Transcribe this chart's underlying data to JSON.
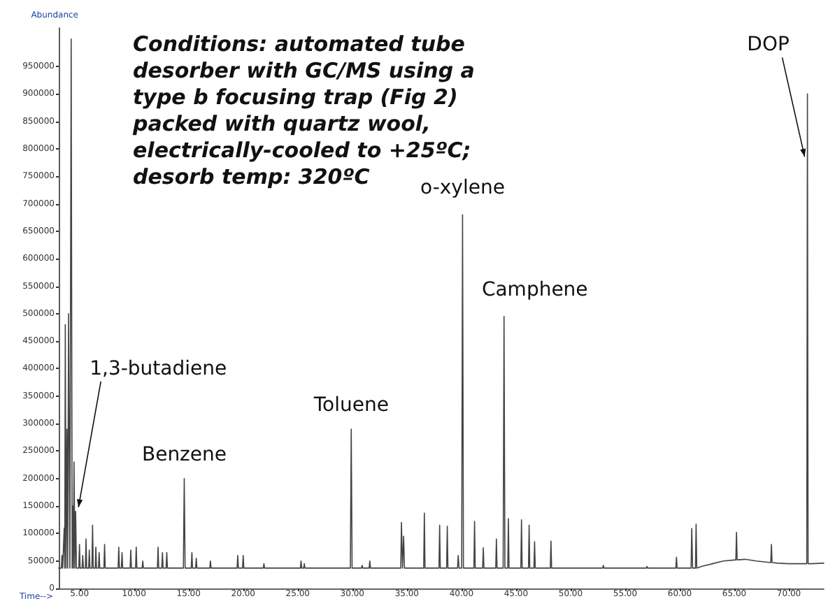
{
  "chart_data": {
    "type": "line",
    "xlabel": "Time-->",
    "ylabel": "Abundance",
    "annotations": [
      "Conditions: automated tube desorber with GC/MS using a type b focusing trap (Fig 2) packed with quartz wool, electrically-cooled to +25ºC; desorb temp: 320ºC",
      {
        "text": "1,3-butadiene",
        "x": 4.65,
        "y": 140000
      },
      {
        "text": "Benzene",
        "x": 14.6,
        "y": 200000
      },
      {
        "text": "Toluene",
        "x": 29.9,
        "y": 290000
      },
      {
        "text": "o-xylene",
        "x": 40.1,
        "y": 680000
      },
      {
        "text": "Camphene",
        "x": 43.9,
        "y": 495000
      },
      {
        "text": "DOP",
        "x": 71.7,
        "y": 900000
      }
    ],
    "series": [
      {
        "color": "#444444",
        "x": [
          3.1,
          3.34,
          3.4,
          3.46,
          3.54,
          3.6,
          3.65,
          3.7,
          3.77,
          3.85,
          3.92,
          4.0,
          4.12,
          4.24,
          4.33,
          4.4,
          4.45,
          4.5,
          4.58,
          4.65,
          4.72,
          4.94,
          5.0,
          5.06,
          5.24,
          5.3,
          5.36,
          5.54,
          5.6,
          5.66,
          5.84,
          5.9,
          5.96,
          6.14,
          6.2,
          6.26,
          6.44,
          6.5,
          6.56,
          6.74,
          6.8,
          6.86,
          7.24,
          7.3,
          7.36,
          8.54,
          8.6,
          8.66,
          8.84,
          8.9,
          8.96,
          9.64,
          9.7,
          9.76,
          10.14,
          10.2,
          10.26,
          10.74,
          10.8,
          10.86,
          12.14,
          12.2,
          12.26,
          12.54,
          12.6,
          12.66,
          12.94,
          13.0,
          13.06,
          14.52,
          14.6,
          14.68,
          15.24,
          15.3,
          15.36,
          15.64,
          15.7,
          15.76,
          16.94,
          17.0,
          17.06,
          19.44,
          19.5,
          19.56,
          19.94,
          20.0,
          20.06,
          21.84,
          21.9,
          21.96,
          25.24,
          25.3,
          25.36,
          25.54,
          25.6,
          25.66,
          29.82,
          29.9,
          29.98,
          30.84,
          30.9,
          30.96,
          31.54,
          31.6,
          31.66,
          34.44,
          34.5,
          34.6,
          34.7,
          34.78,
          36.54,
          36.6,
          36.66,
          37.94,
          38.0,
          38.06,
          38.64,
          38.7,
          38.76,
          39.64,
          39.7,
          39.78,
          40.02,
          40.1,
          40.18,
          41.14,
          41.2,
          41.26,
          41.94,
          42.0,
          42.06,
          43.14,
          43.2,
          43.26,
          43.82,
          43.9,
          43.98,
          44.24,
          44.3,
          44.36,
          45.44,
          45.5,
          45.56,
          46.14,
          46.2,
          46.26,
          46.64,
          46.7,
          46.76,
          48.14,
          48.2,
          48.26,
          52.94,
          53.0,
          53.06,
          56.94,
          57.0,
          57.06,
          59.64,
          59.7,
          59.76,
          61.04,
          61.1,
          61.18,
          61.44,
          61.5,
          61.56,
          62,
          63,
          64,
          65.14,
          65.2,
          65.26,
          66,
          67,
          68.34,
          68.4,
          68.46,
          69,
          70,
          71,
          71.64,
          71.7,
          71.76,
          72,
          73.2
        ],
        "values": [
          37000,
          37000,
          60000,
          37000,
          37000,
          110000,
          37000,
          480000,
          37000,
          290000,
          37000,
          500000,
          37000,
          1000000,
          37000,
          150000,
          37000,
          230000,
          37000,
          140000,
          37000,
          37000,
          80000,
          37000,
          37000,
          60000,
          37000,
          37000,
          90000,
          37000,
          37000,
          70000,
          37000,
          37000,
          115000,
          37000,
          37000,
          75000,
          37000,
          37000,
          65000,
          37000,
          37000,
          80000,
          37000,
          37000,
          75000,
          37000,
          37000,
          65000,
          37000,
          37000,
          70000,
          37000,
          37000,
          75000,
          37000,
          37000,
          50000,
          37000,
          37000,
          75000,
          37000,
          37000,
          65000,
          37000,
          37000,
          65000,
          37000,
          37000,
          200000,
          37000,
          37000,
          65000,
          37000,
          37000,
          55000,
          37000,
          37000,
          50000,
          37000,
          37000,
          60000,
          37000,
          37000,
          60000,
          37000,
          37000,
          45000,
          37000,
          37000,
          50000,
          37000,
          37000,
          45000,
          37000,
          37000,
          290000,
          37000,
          37000,
          42000,
          37000,
          37000,
          50000,
          37000,
          37000,
          120000,
          37000,
          95000,
          37000,
          37000,
          137000,
          37000,
          37000,
          115000,
          37000,
          37000,
          113000,
          37000,
          37000,
          60000,
          37000,
          37000,
          680000,
          37000,
          37000,
          122000,
          37000,
          37000,
          74000,
          37000,
          37000,
          90000,
          37000,
          37000,
          495000,
          37000,
          37000,
          127000,
          37000,
          37000,
          125000,
          37000,
          37000,
          115000,
          37000,
          37000,
          85000,
          37000,
          37000,
          86000,
          37000,
          37000,
          42000,
          37000,
          37000,
          40000,
          37000,
          37000,
          57000,
          37000,
          37000,
          109000,
          37000,
          37000,
          117000,
          37000,
          40000,
          45000,
          50000,
          52000,
          102000,
          52000,
          53000,
          50000,
          47000,
          80000,
          47000,
          46000,
          45000,
          45000,
          45000,
          900000,
          45000,
          45000,
          46000
        ]
      }
    ],
    "xlim": [
      3.1,
      73.2
    ],
    "xticks": [
      {
        "value": 5,
        "label": "5.00"
      },
      {
        "value": 10,
        "label": "10.00"
      },
      {
        "value": 15,
        "label": "15.00"
      },
      {
        "value": 20,
        "label": "20.00"
      },
      {
        "value": 25,
        "label": "25.00"
      },
      {
        "value": 30,
        "label": "30.00"
      },
      {
        "value": 35,
        "label": "35.00"
      },
      {
        "value": 40,
        "label": "40.00"
      },
      {
        "value": 45,
        "label": "45.00"
      },
      {
        "value": 50,
        "label": "50.00"
      },
      {
        "value": 55,
        "label": "55.00"
      },
      {
        "value": 60,
        "label": "60.00"
      },
      {
        "value": 65,
        "label": "65.00"
      },
      {
        "value": 70,
        "label": "70.00"
      }
    ],
    "ylim": [
      0,
      1020000
    ],
    "yticks": [
      0,
      50000,
      100000,
      150000,
      200000,
      250000,
      300000,
      350000,
      400000,
      450000,
      500000,
      550000,
      600000,
      650000,
      700000,
      750000,
      800000,
      850000,
      900000,
      950000
    ],
    "marker": "none",
    "line_style": "solid",
    "grid": false
  }
}
